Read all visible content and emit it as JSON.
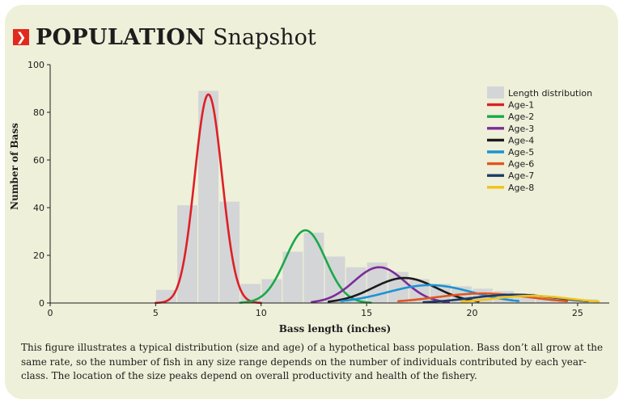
{
  "header": {
    "icon": "chevron-right-icon",
    "title_bold": "POPULATION",
    "title_light": "Snapshot",
    "accent_color": "#e02a1e"
  },
  "caption": "This figure illustrates a typical distribution (size and age) of a hypothetical bass population. Bass don’t all grow at the same rate, so the number of fish in any size range depends on the number of individuals contributed by each year-class. The location of the size peaks depend on overall productivity and health of the fishery.",
  "chart_data": {
    "type": "bar",
    "xlabel": "Bass length (inches)",
    "ylabel": "Number of Bass",
    "xlim": [
      0,
      26.5
    ],
    "ylim": [
      0,
      100
    ],
    "xticks": [
      0,
      5,
      10,
      15,
      20,
      25
    ],
    "yticks": [
      0,
      20,
      40,
      60,
      80,
      100
    ],
    "legend_position": "top-right",
    "bars": {
      "name": "Length distribution",
      "color": "#d4d5d6",
      "x": [
        5.5,
        6.5,
        7.5,
        8.5,
        9.5,
        10.5,
        11.5,
        12.5,
        13.5,
        14.5,
        15.5,
        16.5,
        17.5,
        18.5,
        19.5,
        20.5,
        21.5,
        22.5,
        23.5,
        24.5,
        25.5
      ],
      "values": [
        5.5,
        41,
        89,
        42.5,
        8,
        10,
        21.5,
        29.5,
        19.5,
        15,
        17,
        13,
        10,
        8,
        7,
        6,
        5,
        4,
        3,
        2,
        1.5
      ]
    },
    "series": [
      {
        "name": "Age-1",
        "color": "#de1f26",
        "peak_x": 7.5,
        "peak_y": 87.5,
        "sd": 0.65,
        "x_start": 5.0,
        "x_end": 10.0
      },
      {
        "name": "Age-2",
        "color": "#1aa84a",
        "peak_x": 12.1,
        "peak_y": 30.5,
        "sd": 0.95,
        "x_start": 9.0,
        "x_end": 15.2
      },
      {
        "name": "Age-3",
        "color": "#7b2c99",
        "peak_x": 15.6,
        "peak_y": 15,
        "sd": 1.2,
        "x_start": 12.4,
        "x_end": 18.9
      },
      {
        "name": "Age-4",
        "color": "#1a1a1a",
        "peak_x": 16.8,
        "peak_y": 10.5,
        "sd": 1.5,
        "x_start": 13.2,
        "x_end": 20.3
      },
      {
        "name": "Age-5",
        "color": "#1b93d2",
        "peak_x": 18.0,
        "peak_y": 7.5,
        "sd": 2.0,
        "x_start": 13.8,
        "x_end": 22.2
      },
      {
        "name": "Age-6",
        "color": "#e2561f",
        "peak_x": 20.5,
        "peak_y": 4,
        "sd": 2.2,
        "x_start": 16.5,
        "x_end": 24.5
      },
      {
        "name": "Age-7",
        "color": "#1b3a66",
        "peak_x": 22.0,
        "peak_y": 3.5,
        "sd": 2.0,
        "x_start": 17.7,
        "x_end": 25.5
      },
      {
        "name": "Age-8",
        "color": "#f2c318",
        "peak_x": 22.8,
        "peak_y": 3,
        "sd": 1.8,
        "x_start": 19.5,
        "x_end": 26.0
      }
    ]
  }
}
